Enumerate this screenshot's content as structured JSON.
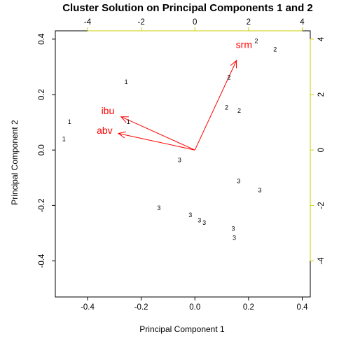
{
  "chart_data": {
    "type": "scatter",
    "title": "Cluster Solution on Principal Components 1 and 2",
    "xlabel": "Principal Component 1",
    "ylabel": "Principal Component 2",
    "xlim": [
      -0.52,
      0.43
    ],
    "ylim": [
      -0.53,
      0.43
    ],
    "x_ticks": [
      "-0.4",
      "-0.2",
      "0.0",
      "0.2",
      "0.4"
    ],
    "y_ticks": [
      "-0.4",
      "-0.2",
      "0.0",
      "0.2",
      "0.4"
    ],
    "secondary_axis_color": "#cccc00",
    "x2_ticks": [
      "-4",
      "-2",
      "0",
      "2",
      "4"
    ],
    "y2_ticks": [
      "-4",
      "-2",
      "0",
      "2",
      "4"
    ],
    "points": [
      {
        "x": -0.256,
        "y": 0.246,
        "label": "1"
      },
      {
        "x": -0.467,
        "y": 0.101,
        "label": "1"
      },
      {
        "x": -0.488,
        "y": 0.04,
        "label": "1"
      },
      {
        "x": -0.248,
        "y": 0.101,
        "label": "1"
      },
      {
        "x": 0.229,
        "y": 0.394,
        "label": "2"
      },
      {
        "x": 0.299,
        "y": 0.363,
        "label": "2"
      },
      {
        "x": 0.127,
        "y": 0.262,
        "label": "2"
      },
      {
        "x": 0.118,
        "y": 0.154,
        "label": "2"
      },
      {
        "x": 0.165,
        "y": 0.142,
        "label": "2"
      },
      {
        "x": -0.057,
        "y": -0.036,
        "label": "3"
      },
      {
        "x": 0.163,
        "y": -0.112,
        "label": "3"
      },
      {
        "x": 0.242,
        "y": -0.145,
        "label": "3"
      },
      {
        "x": -0.134,
        "y": -0.209,
        "label": "3"
      },
      {
        "x": -0.017,
        "y": -0.234,
        "label": "3"
      },
      {
        "x": 0.017,
        "y": -0.253,
        "label": "3"
      },
      {
        "x": 0.035,
        "y": -0.262,
        "label": "3"
      },
      {
        "x": 0.143,
        "y": -0.284,
        "label": "3"
      },
      {
        "x": 0.147,
        "y": -0.317,
        "label": "3"
      }
    ],
    "vectors": [
      {
        "name": "srm",
        "x": 0.155,
        "y": 0.323
      },
      {
        "name": "ibu",
        "x": -0.275,
        "y": 0.12
      },
      {
        "name": "abv",
        "x": -0.285,
        "y": 0.06
      }
    ],
    "vector_color": "#ff0000"
  }
}
